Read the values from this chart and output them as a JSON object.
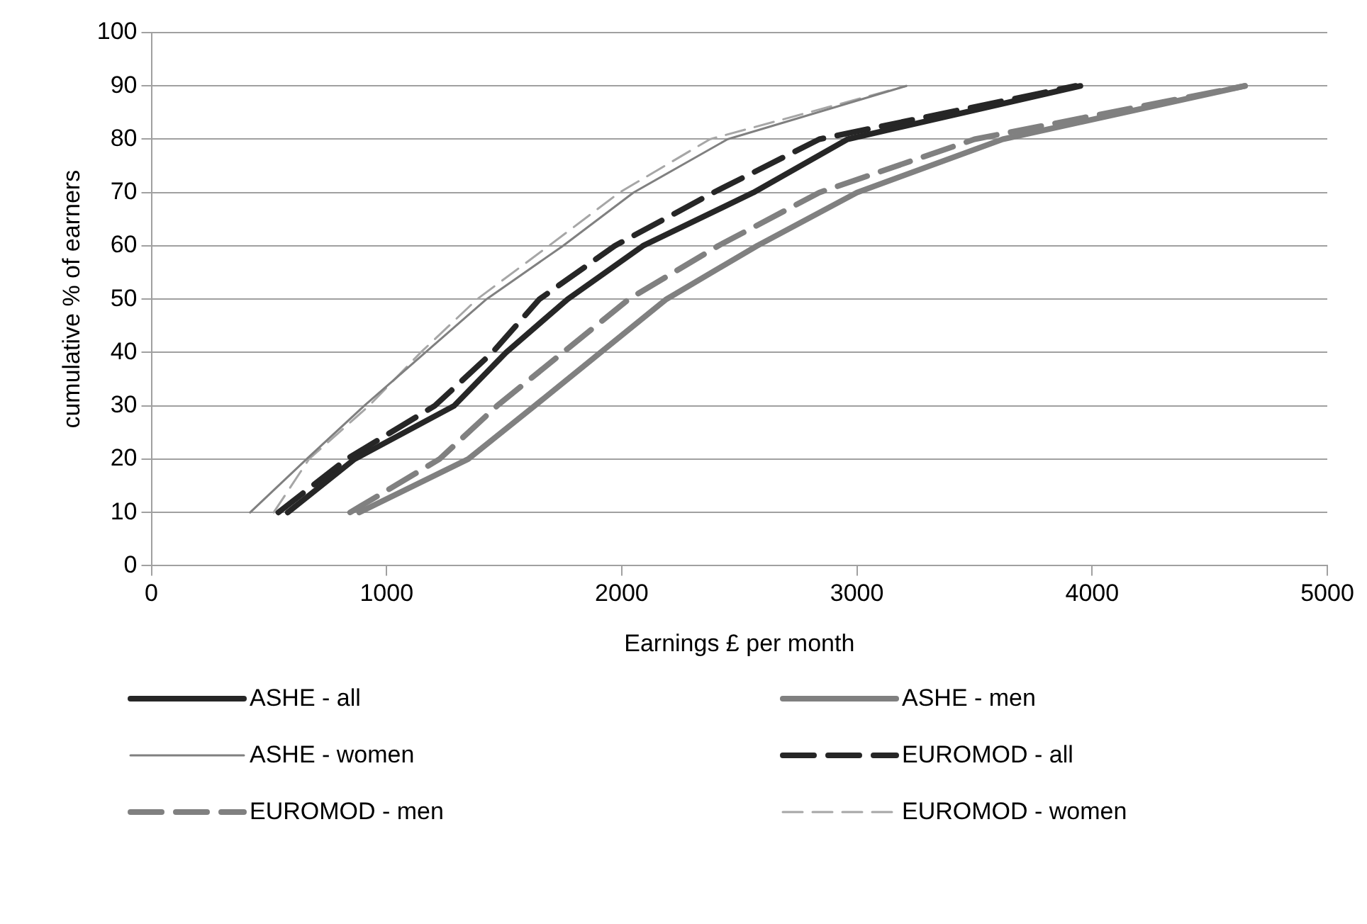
{
  "chart_data": {
    "type": "line",
    "xlabel": "Earnings £ per month",
    "ylabel": "cumulative % of earners",
    "xlim": [
      0,
      5000
    ],
    "xticks": [
      0,
      1000,
      2000,
      3000,
      4000,
      5000
    ],
    "ylim": [
      0,
      100
    ],
    "yticks": [
      0,
      10,
      20,
      30,
      40,
      50,
      60,
      70,
      80,
      90,
      100
    ],
    "grid": "y",
    "legend": "bottom",
    "marker": "none",
    "series": [
      {
        "name": "ASHE - all",
        "color": "#262626",
        "line_style": "solid",
        "x": [
          580,
          864,
          1287,
          1508,
          1770,
          2090,
          2560,
          2960,
          3950
        ],
        "values": [
          10,
          20,
          30,
          40,
          50,
          60,
          70,
          80,
          90
        ]
      },
      {
        "name": "ASHE - men",
        "color": "#808080",
        "line_style": "solid",
        "x": [
          884,
          1347,
          1630,
          1910,
          2190,
          2575,
          3000,
          3620,
          4650
        ],
        "values": [
          10,
          20,
          30,
          40,
          50,
          60,
          70,
          80,
          90
        ]
      },
      {
        "name": "ASHE - women",
        "color": "#808080",
        "line_style": "solid",
        "x": [
          420,
          660,
          905,
          1165,
          1425,
          1750,
          2050,
          2450,
          3210
        ],
        "values": [
          10,
          20,
          30,
          40,
          50,
          60,
          70,
          80,
          90
        ]
      },
      {
        "name": "EUROMOD - all",
        "color": "#262626",
        "line_style": "dashed",
        "x": [
          540,
          830,
          1205,
          1450,
          1650,
          1970,
          2390,
          2840,
          3930
        ],
        "values": [
          10,
          20,
          30,
          40,
          50,
          60,
          70,
          80,
          90
        ]
      },
      {
        "name": "EUROMOD - men",
        "color": "#808080",
        "line_style": "dashed",
        "x": [
          845,
          1225,
          1470,
          1750,
          2030,
          2410,
          2840,
          3500,
          4650
        ],
        "values": [
          10,
          20,
          30,
          40,
          50,
          60,
          70,
          80,
          90
        ]
      },
      {
        "name": "EUROMOD - women",
        "color": "#a6a6a6",
        "line_style": "dashed",
        "x": [
          520,
          670,
          925,
          1145,
          1385,
          1690,
          1990,
          2375,
          3210
        ],
        "values": [
          10,
          20,
          30,
          40,
          50,
          60,
          70,
          80,
          90
        ]
      }
    ]
  }
}
